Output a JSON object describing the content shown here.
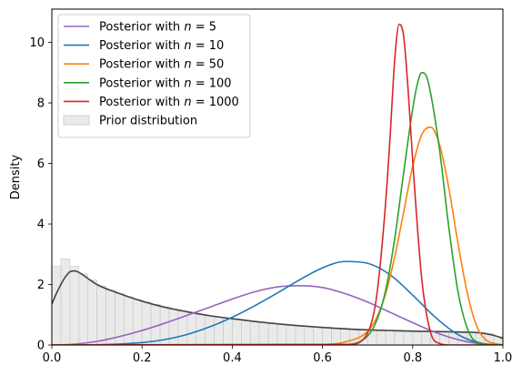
{
  "chart_data": {
    "type": "line",
    "ylabel": "Density",
    "xlim": [
      0,
      1
    ],
    "ylim": [
      0,
      11.1
    ],
    "xticks": [
      0.0,
      0.2,
      0.4,
      0.6,
      0.8,
      1.0
    ],
    "xtick_labels": [
      "0.0",
      "0.2",
      "0.4",
      "0.6",
      "0.8",
      "1.0"
    ],
    "yticks": [
      0,
      2,
      4,
      6,
      8,
      10
    ],
    "ytick_labels": [
      "0",
      "2",
      "4",
      "6",
      "8",
      "10"
    ],
    "legend_placement": "top-left",
    "grid": false,
    "series": [
      {
        "name": "Posterior with n = 5",
        "label_prefix": "Posterior with ",
        "label_var": "n",
        "label_suffix": " = 5",
        "color": "#9467bd",
        "x": [
          0.0,
          0.05,
          0.1,
          0.15,
          0.2,
          0.25,
          0.3,
          0.35,
          0.4,
          0.45,
          0.5,
          0.55,
          0.6,
          0.65,
          0.7,
          0.75,
          0.8,
          0.85,
          0.9,
          0.95,
          1.0
        ],
        "y": [
          0.0,
          0.03,
          0.12,
          0.28,
          0.48,
          0.72,
          0.98,
          1.25,
          1.52,
          1.76,
          1.92,
          1.96,
          1.9,
          1.7,
          1.42,
          1.08,
          0.74,
          0.42,
          0.18,
          0.04,
          0.0
        ]
      },
      {
        "name": "Posterior with n = 10",
        "label_prefix": "Posterior with ",
        "label_var": "n",
        "label_suffix": " = 10",
        "color": "#1f77b4",
        "x": [
          0.0,
          0.1,
          0.2,
          0.25,
          0.3,
          0.35,
          0.4,
          0.45,
          0.5,
          0.55,
          0.6,
          0.65,
          0.7,
          0.75,
          0.8,
          0.85,
          0.9,
          0.95,
          1.0
        ],
        "y": [
          0.0,
          0.01,
          0.08,
          0.18,
          0.35,
          0.6,
          0.92,
          1.3,
          1.72,
          2.16,
          2.55,
          2.76,
          2.7,
          2.32,
          1.65,
          0.92,
          0.35,
          0.06,
          0.0
        ]
      },
      {
        "name": "Posterior with n = 50",
        "label_prefix": "Posterior with ",
        "label_var": "n",
        "label_suffix": " = 50",
        "color": "#ff7f0e",
        "x": [
          0.0,
          0.6,
          0.65,
          0.7,
          0.72,
          0.74,
          0.76,
          0.78,
          0.8,
          0.82,
          0.84,
          0.86,
          0.88,
          0.9,
          0.92,
          0.94,
          0.96,
          1.0
        ],
        "y": [
          0.0,
          0.02,
          0.1,
          0.45,
          0.9,
          1.7,
          2.9,
          4.4,
          5.9,
          6.95,
          7.2,
          6.6,
          5.2,
          3.4,
          1.8,
          0.7,
          0.2,
          0.0
        ]
      },
      {
        "name": "Posterior with n = 100",
        "label_prefix": "Posterior with ",
        "label_var": "n",
        "label_suffix": " = 100",
        "color": "#2ca02c",
        "x": [
          0.0,
          0.65,
          0.7,
          0.72,
          0.74,
          0.76,
          0.78,
          0.8,
          0.81,
          0.82,
          0.83,
          0.84,
          0.86,
          0.88,
          0.9,
          0.92,
          0.94,
          1.0
        ],
        "y": [
          0.0,
          0.02,
          0.3,
          0.8,
          1.8,
          3.5,
          5.7,
          7.8,
          8.6,
          9.0,
          8.9,
          8.3,
          6.4,
          3.9,
          1.8,
          0.6,
          0.12,
          0.0
        ]
      },
      {
        "name": "Posterior with n = 1000",
        "label_prefix": "Posterior with ",
        "label_var": "n",
        "label_suffix": " = 1000",
        "color": "#d62728",
        "x": [
          0.0,
          0.66,
          0.7,
          0.72,
          0.74,
          0.75,
          0.76,
          0.77,
          0.78,
          0.79,
          0.8,
          0.82,
          0.84,
          0.86,
          0.88,
          1.0
        ],
        "y": [
          0.0,
          0.02,
          0.4,
          1.6,
          4.7,
          6.9,
          9.4,
          10.6,
          10.2,
          8.4,
          6.1,
          2.2,
          0.4,
          0.05,
          0.0,
          0.0
        ]
      },
      {
        "color": "#444444",
        "x": [
          0.0,
          0.01,
          0.02,
          0.03,
          0.04,
          0.05,
          0.06,
          0.08,
          0.1,
          0.15,
          0.2,
          0.25,
          0.3,
          0.35,
          0.4,
          0.5,
          0.6,
          0.7,
          0.8,
          0.9,
          0.95,
          0.98,
          1.0
        ],
        "y": [
          1.35,
          1.7,
          2.0,
          2.25,
          2.42,
          2.45,
          2.4,
          2.2,
          2.0,
          1.7,
          1.45,
          1.25,
          1.1,
          0.97,
          0.87,
          0.7,
          0.58,
          0.5,
          0.46,
          0.43,
          0.4,
          0.32,
          0.22
        ]
      }
    ],
    "prior_histogram": {
      "name": "Prior distribution",
      "color": "#d9d9d9",
      "bin_width": 0.02,
      "bin_starts": [
        0.0,
        0.02,
        0.04,
        0.06,
        0.08,
        0.1,
        0.12,
        0.14,
        0.16,
        0.18,
        0.2,
        0.22,
        0.24,
        0.26,
        0.28,
        0.3,
        0.32,
        0.34,
        0.36,
        0.38,
        0.4,
        0.42,
        0.44,
        0.46,
        0.48,
        0.5,
        0.52,
        0.54,
        0.56,
        0.58,
        0.6,
        0.62,
        0.64,
        0.66,
        0.68,
        0.7,
        0.72,
        0.74,
        0.76,
        0.78,
        0.8,
        0.82,
        0.84,
        0.86,
        0.88,
        0.9,
        0.92,
        0.94,
        0.96,
        0.98
      ],
      "heights": [
        2.6,
        2.85,
        2.6,
        2.35,
        2.15,
        1.95,
        1.82,
        1.7,
        1.6,
        1.5,
        1.42,
        1.34,
        1.26,
        1.19,
        1.12,
        1.06,
        1.01,
        0.96,
        0.92,
        0.88,
        0.84,
        0.8,
        0.77,
        0.74,
        0.71,
        0.69,
        0.66,
        0.64,
        0.62,
        0.6,
        0.59,
        0.57,
        0.56,
        0.54,
        0.53,
        0.52,
        0.51,
        0.5,
        0.49,
        0.48,
        0.47,
        0.46,
        0.46,
        0.45,
        0.45,
        0.44,
        0.43,
        0.42,
        0.38,
        0.28
      ]
    }
  }
}
